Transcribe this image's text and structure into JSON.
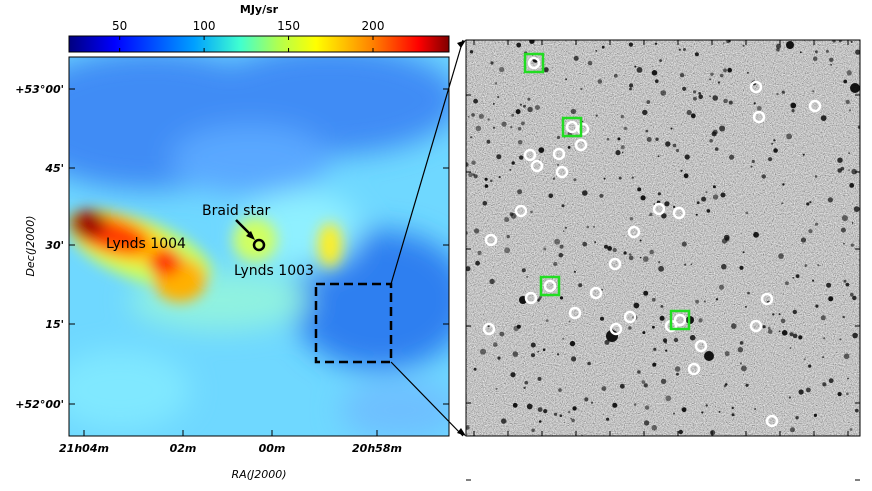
{
  "colorbar": {
    "unit": "MJy/sr",
    "ticks": [
      "50",
      "100",
      "150",
      "200"
    ],
    "tick_values": [
      50,
      100,
      150,
      200
    ],
    "range": [
      20,
      245
    ]
  },
  "left_panel": {
    "dec_ticks": [
      "+53°00'",
      "45'",
      "30'",
      "15'",
      "+52°00'"
    ],
    "ra_ticks": [
      "21h04m",
      "02m",
      "00m",
      "20h58m"
    ],
    "x_label": "RA(J2000)",
    "y_label": "Dec(J2000)",
    "annotations": {
      "braid_star": "Braid star",
      "lynds_1004": "Lynds 1004",
      "lynds_1003": "Lynds 1003"
    }
  },
  "right_panel": {
    "circle_count": 30,
    "square_count": 4
  }
}
